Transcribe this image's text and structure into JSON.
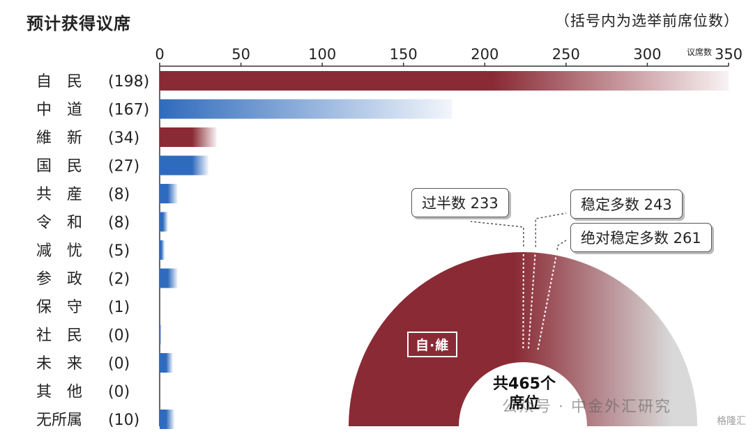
{
  "header": {
    "title": "预计获得议席",
    "note": "（括号内为选举前席位数）"
  },
  "chart_data": [
    {
      "type": "bar",
      "orientation": "horizontal",
      "axis_unit": "议席数",
      "xlim": [
        0,
        350
      ],
      "ticks": [
        0,
        50,
        100,
        150,
        200,
        250,
        300,
        350
      ],
      "categories": [
        {
          "name": "自　民",
          "prev": "(198)",
          "low": 205,
          "high": 350,
          "color": "#8a2a35"
        },
        {
          "name": "中　道",
          "prev": "(167)",
          "low": 0,
          "high": 180,
          "color": "#2f6bbd"
        },
        {
          "name": "維　新",
          "prev": "(34)",
          "low": 20,
          "high": 35,
          "color": "#8a2a35"
        },
        {
          "name": "国　民",
          "prev": "(27)",
          "low": 20,
          "high": 30,
          "color": "#2f6bbd"
        },
        {
          "name": "共　産",
          "prev": "(8)",
          "low": 5,
          "high": 11,
          "color": "#2f6bbd"
        },
        {
          "name": "令　和",
          "prev": "(8)",
          "low": 2,
          "high": 5,
          "color": "#2f6bbd"
        },
        {
          "name": "减　忧",
          "prev": "(5)",
          "low": 1,
          "high": 3,
          "color": "#2f6bbd"
        },
        {
          "name": "参　政",
          "prev": "(2)",
          "low": 5,
          "high": 11,
          "color": "#2f6bbd"
        },
        {
          "name": "保　守",
          "prev": "(1)",
          "low": 0,
          "high": 0,
          "color": "#2f6bbd"
        },
        {
          "name": "社　民",
          "prev": "(0)",
          "low": 0,
          "high": 1,
          "color": "#2f6bbd"
        },
        {
          "name": "未　来",
          "prev": "(0)",
          "low": 4,
          "high": 8,
          "color": "#2f6bbd"
        },
        {
          "name": "其　他",
          "prev": "(0)",
          "low": 0,
          "high": 0,
          "color": "#2f6bbd"
        },
        {
          "name": "无所属",
          "prev": "(10)",
          "low": 4,
          "high": 9,
          "color": "#2f6bbd"
        }
      ]
    },
    {
      "type": "pie",
      "shape": "semicircle",
      "total_seats": 465,
      "segments": [
        {
          "label": "自·維",
          "low": 225,
          "high": 385,
          "color": "#8a2a35"
        },
        {
          "label": "",
          "value": 465,
          "color": "#d9d9d9"
        }
      ],
      "markers": [
        {
          "label": "过半数",
          "value": 233
        },
        {
          "label": "稳定多数",
          "value": 243
        },
        {
          "label": "绝对稳定多数",
          "value": 261
        }
      ],
      "center_label": "共465个\n席位",
      "segment_label": "自·維"
    }
  ],
  "callouts": {
    "majority": "过半数 233",
    "stable": "稳定多数 243",
    "absolute": "绝对稳定多数 261"
  },
  "semi": {
    "segment_label": "自·維",
    "center_line1": "共465个",
    "center_line2": "席位"
  },
  "watermark": {
    "text": "公众号 · 中金外汇研究",
    "badge": "格隆汇"
  }
}
